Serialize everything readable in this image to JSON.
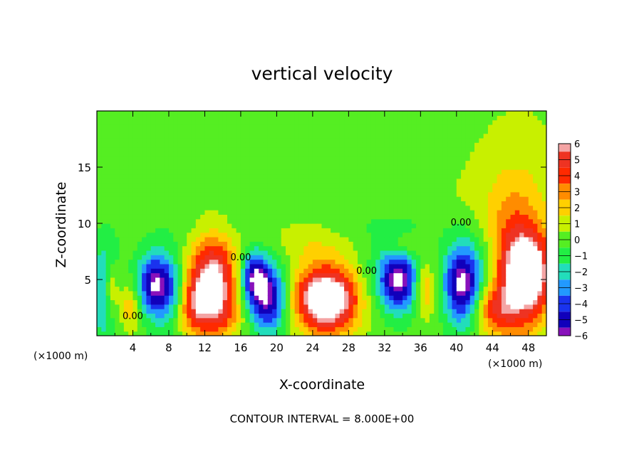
{
  "chart_data": {
    "type": "heatmap",
    "title": "vertical velocity",
    "xlabel": "X-coordinate",
    "ylabel": "Z-coordinate",
    "x_unit_left": "(×1000 m)",
    "x_unit_right": "(×1000 m)",
    "footer": "CONTOUR INTERVAL = 8.000E+00",
    "xlim": [
      0,
      50
    ],
    "ylim": [
      0,
      20
    ],
    "x_ticks": [
      4,
      8,
      12,
      16,
      20,
      24,
      28,
      32,
      36,
      40,
      44,
      48
    ],
    "y_ticks": [
      5,
      10,
      15
    ],
    "colorbar": {
      "levels": [
        6,
        5,
        4,
        3,
        2,
        1,
        0,
        -1,
        -2,
        -3,
        -4,
        -5,
        -6
      ],
      "colors": [
        "#f4a4a4",
        "#ee3322",
        "#ff2a00",
        "#ff8c00",
        "#ffd000",
        "#c8f000",
        "#55ee22",
        "#22ee44",
        "#22ddbb",
        "#2299ff",
        "#1a33ee",
        "#1100bb",
        "#8811bb"
      ]
    },
    "contour_labels": [
      {
        "x": 4.0,
        "z": 1.5,
        "text": "0.00"
      },
      {
        "x": 16.0,
        "z": 6.7,
        "text": "0.00"
      },
      {
        "x": 30.0,
        "z": 5.5,
        "text": "0.00"
      },
      {
        "x": 40.5,
        "z": 9.8,
        "text": "0.00"
      }
    ],
    "features": [
      {
        "x": 1.0,
        "z": 4.0,
        "sx": 1.1,
        "sz": 3.0,
        "w": -3.5
      },
      {
        "x": 1.6,
        "z": 4.2,
        "sx": 0.6,
        "sz": 1.8,
        "w": 3.5
      },
      {
        "x": 3.6,
        "z": 2.6,
        "sx": 0.9,
        "sz": 1.5,
        "w": 2.5
      },
      {
        "x": 6.2,
        "z": 4.6,
        "sx": 1.3,
        "sz": 1.9,
        "w": -4.2
      },
      {
        "x": 8.0,
        "z": 4.0,
        "sx": 1.7,
        "sz": 2.5,
        "w": -3.5
      },
      {
        "x": 10.5,
        "z": 3.2,
        "sx": 1.0,
        "sz": 2.0,
        "w": 2.5
      },
      {
        "x": 13.0,
        "z": 4.8,
        "sx": 2.0,
        "sz": 2.8,
        "w": 7.2
      },
      {
        "x": 13.0,
        "z": 1.8,
        "sx": 3.5,
        "sz": 1.5,
        "w": 2.0
      },
      {
        "x": 17.5,
        "z": 5.5,
        "sx": 1.0,
        "sz": 1.5,
        "w": -4.0
      },
      {
        "x": 19.0,
        "z": 3.2,
        "sx": 1.5,
        "sz": 2.0,
        "w": -5.0
      },
      {
        "x": 18.2,
        "z": 4.0,
        "sx": 2.8,
        "sz": 3.0,
        "w": -2.0
      },
      {
        "x": 25.5,
        "z": 3.2,
        "sx": 2.4,
        "sz": 1.9,
        "w": 7.0
      },
      {
        "x": 25.5,
        "z": 4.0,
        "sx": 4.0,
        "sz": 3.0,
        "w": 2.0
      },
      {
        "x": 33.5,
        "z": 5.0,
        "sx": 1.4,
        "sz": 1.8,
        "w": -5.0
      },
      {
        "x": 32.5,
        "z": 5.0,
        "sx": 2.8,
        "sz": 2.6,
        "w": -2.0
      },
      {
        "x": 36.5,
        "z": 4.2,
        "sx": 0.8,
        "sz": 1.8,
        "w": 3.0
      },
      {
        "x": 34.0,
        "z": 8.0,
        "sx": 1.4,
        "sz": 0.8,
        "w": 1.5
      },
      {
        "x": 40.5,
        "z": 4.4,
        "sx": 1.3,
        "sz": 2.5,
        "w": -4.8
      },
      {
        "x": 42.0,
        "z": 5.5,
        "sx": 2.0,
        "sz": 2.3,
        "w": -2.5
      },
      {
        "x": 46.5,
        "z": 5.5,
        "sx": 2.0,
        "sz": 4.0,
        "w": 6.0
      },
      {
        "x": 48.8,
        "z": 5.5,
        "sx": 1.5,
        "sz": 2.5,
        "w": 5.0
      },
      {
        "x": 44.0,
        "z": 2.5,
        "sx": 1.5,
        "sz": 1.5,
        "w": 3.0
      },
      {
        "x": 22.0,
        "z": 9.0,
        "sx": 4.0,
        "sz": 1.5,
        "w": 1.2
      },
      {
        "x": 47.0,
        "z": 15.0,
        "sx": 4.0,
        "sz": 5.0,
        "w": 0.8
      },
      {
        "x": 45.0,
        "z": 12.0,
        "sx": 5.0,
        "sz": 3.0,
        "w": 0.6
      },
      {
        "x": 10.0,
        "z": 16.0,
        "sx": 6.0,
        "sz": 3.0,
        "w": 0.4
      },
      {
        "x": 25.0,
        "z": 9.8,
        "sx": 12.0,
        "sz": 1.0,
        "w": -0.6
      }
    ]
  }
}
